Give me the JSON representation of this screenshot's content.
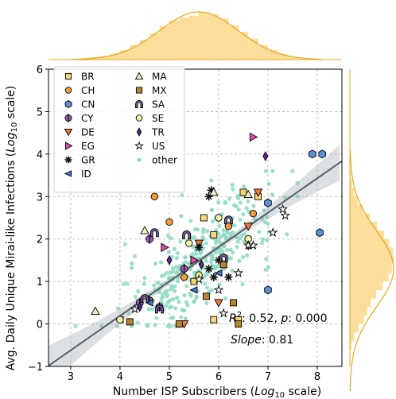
{
  "chart_data": {
    "type": "scatter",
    "xlabel_main": "Number ISP Subscribers (",
    "xlabel_log": "Log",
    "xlabel_sub": "10",
    "xlabel_tail": " scale)",
    "ylabel_main": "Avg. Daily Unique Mirai-like Infections (",
    "ylabel_log": "Log",
    "ylabel_sub": "10",
    "ylabel_tail": " scale)",
    "xlim": [
      2.55,
      8.5
    ],
    "ylim": [
      -1,
      6
    ],
    "xticks": [
      "3",
      "4",
      "5",
      "6",
      "7",
      "8"
    ],
    "yticks": [
      "−1",
      "0",
      "1",
      "2",
      "3",
      "4",
      "5",
      "6"
    ],
    "grid": true,
    "legend_position": "top-left",
    "regression": {
      "slope": 0.81,
      "intercept": -3.05
    },
    "annotation": {
      "r2_label": "R",
      "r2_sup": "2",
      "r2_text": ": 0.52,  ",
      "p_label": "p",
      "p_text": ": 0.000",
      "slope_label": "Slope",
      "slope_text": ": 0.81"
    },
    "series": [
      {
        "name": "BR",
        "marker": "square",
        "color": "#f5d77a",
        "points": [
          [
            5.7,
            2.5
          ],
          [
            5.9,
            2.1
          ],
          [
            6.1,
            1.4
          ],
          [
            6.5,
            3.1
          ],
          [
            6.8,
            3.0
          ],
          [
            6.4,
            0.1
          ],
          [
            5.5,
            1.0
          ],
          [
            5.9,
            0.1
          ]
        ]
      },
      {
        "name": "CH",
        "marker": "circle",
        "color": "#f59a3a",
        "points": [
          [
            4.7,
            3.0
          ],
          [
            5.0,
            2.4
          ],
          [
            6.7,
            2.6
          ],
          [
            5.3,
            1.1
          ],
          [
            6.2,
            2.3
          ]
        ]
      },
      {
        "name": "CN",
        "marker": "hexagon",
        "color": "#5b8fd6",
        "points": [
          [
            7.9,
            4.0
          ],
          [
            8.1,
            4.0
          ],
          [
            8.05,
            2.15
          ],
          [
            7.0,
            0.8
          ],
          [
            7.0,
            2.85
          ]
        ]
      },
      {
        "name": "CY",
        "marker": "circle-bar",
        "color": "#9b5ab0",
        "points": [
          [
            4.6,
            2.0
          ],
          [
            4.4,
            0.5
          ],
          [
            5.3,
            1.3
          ],
          [
            4.8,
            0.4
          ],
          [
            4.6,
            0.55
          ]
        ]
      },
      {
        "name": "DE",
        "marker": "triangle-down",
        "color": "#f07a3d",
        "points": [
          [
            6.8,
            3.1
          ],
          [
            6.6,
            2.3
          ],
          [
            5.6,
            1.9
          ],
          [
            5.3,
            0.0
          ],
          [
            6.0,
            0.5
          ]
        ]
      },
      {
        "name": "EG",
        "marker": "triangle-right",
        "color": "#e34ba8",
        "points": [
          [
            6.7,
            4.4
          ],
          [
            4.9,
            1.8
          ],
          [
            5.5,
            1.5
          ]
        ]
      },
      {
        "name": "GR",
        "marker": "asterisk",
        "color": "#111111",
        "points": [
          [
            5.8,
            3.0
          ],
          [
            5.85,
            3.15
          ],
          [
            6.0,
            1.5
          ],
          [
            5.9,
            1.1
          ],
          [
            5.8,
            1.3
          ],
          [
            5.6,
            1.8
          ],
          [
            6.2,
            1.1
          ]
        ]
      },
      {
        "name": "ID",
        "marker": "triangle-left",
        "color": "#3c7ad6",
        "points": [
          [
            4.0,
            0.1
          ],
          [
            4.6,
            0.5
          ],
          [
            5.5,
            0.8
          ],
          [
            6.0,
            1.2
          ]
        ]
      },
      {
        "name": "MA",
        "marker": "triangle-up",
        "color": "#f2efc0",
        "points": [
          [
            3.5,
            0.3
          ],
          [
            4.5,
            2.2
          ],
          [
            5.9,
            3.1
          ],
          [
            6.6,
            3.05
          ]
        ]
      },
      {
        "name": "MX",
        "marker": "square",
        "color": "#b7852e",
        "points": [
          [
            6.4,
            0.0
          ],
          [
            6.1,
            1.4
          ],
          [
            5.75,
            0.65
          ],
          [
            6.3,
            0.5
          ],
          [
            5.2,
            0.0
          ],
          [
            4.2,
            0.05
          ]
        ]
      },
      {
        "name": "SA",
        "marker": "arch",
        "color": "#7b5a9b",
        "points": [
          [
            4.7,
            2.15
          ],
          [
            4.5,
            0.6
          ],
          [
            5.35,
            2.1
          ],
          [
            6.2,
            2.45
          ],
          [
            4.8,
            0.35
          ],
          [
            6.1,
            1.55
          ]
        ]
      },
      {
        "name": "SE",
        "marker": "circle",
        "color": "#f5f3a8",
        "points": [
          [
            4.0,
            0.1
          ],
          [
            5.4,
            1.9
          ],
          [
            6.6,
            2.0
          ],
          [
            6.0,
            2.5
          ],
          [
            5.6,
            1.15
          ]
        ]
      },
      {
        "name": "TR",
        "marker": "diamond",
        "color": "#5a2a8a",
        "points": [
          [
            6.95,
            3.95
          ],
          [
            4.4,
            0.4
          ],
          [
            5.0,
            1.5
          ],
          [
            6.6,
            1.85
          ],
          [
            5.65,
            1.4
          ]
        ]
      },
      {
        "name": "US",
        "marker": "star",
        "color": "#ffffff",
        "points": [
          [
            7.3,
            2.7
          ],
          [
            7.35,
            2.55
          ],
          [
            7.1,
            2.15
          ],
          [
            6.7,
            1.85
          ],
          [
            6.6,
            1.85
          ],
          [
            6.4,
            1.2
          ],
          [
            6.0,
            0.8
          ],
          [
            5.6,
            1.05
          ],
          [
            4.3,
            0.35
          ],
          [
            6.1,
            0.25
          ]
        ]
      },
      {
        "name": "other",
        "marker": "dot",
        "color": "#8fdcc4",
        "points": []
      }
    ]
  }
}
